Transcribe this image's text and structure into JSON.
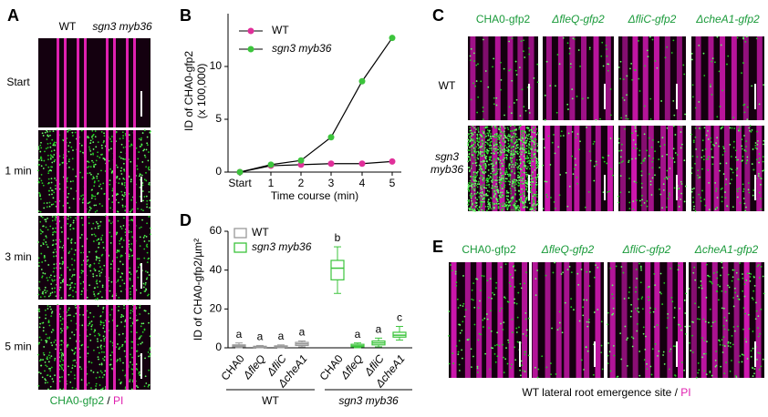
{
  "panel_letters": [
    "A",
    "B",
    "C",
    "D",
    "E"
  ],
  "panel_a": {
    "columns": [
      "WT",
      "sgn3 myb36"
    ],
    "rows": [
      "Start",
      "1 min",
      "3 min",
      "5 min"
    ],
    "caption": [
      "CHA0-gfp2",
      " / ",
      "PI"
    ]
  },
  "panel_c": {
    "columns": [
      "CHA0-gfp2",
      "ΔfleQ-gfp2",
      "ΔfliC-gfp2",
      "ΔcheA1-gfp2"
    ],
    "rows": [
      [
        "WT"
      ],
      [
        "sgn3",
        "myb36"
      ]
    ]
  },
  "panel_e": {
    "columns": [
      "CHA0-gfp2",
      "ΔfleQ-gfp2",
      "ΔfliC-gfp2",
      "ΔcheA1-gfp2"
    ],
    "caption": [
      "WT lateral root emergence site",
      " / ",
      "PI"
    ]
  },
  "chart_data": [
    {
      "type": "line",
      "categories": [
        "Start",
        "1",
        "2",
        "3",
        "4",
        "5"
      ],
      "series": [
        {
          "name": "WT",
          "color": "#e0309a",
          "values": [
            0,
            0.6,
            0.7,
            0.8,
            0.8,
            1.0
          ]
        },
        {
          "name": "sgn3 myb36",
          "color": "#3cc43c",
          "values": [
            0,
            0.7,
            1.1,
            3.3,
            8.6,
            12.7
          ]
        }
      ],
      "line_color": "#000000",
      "ylim": [
        0,
        15
      ],
      "yticks": [
        0,
        5,
        10
      ],
      "ylabel": [
        "ID of CHA0-gfp2",
        "(x 100,000)"
      ],
      "xlabel": "Time course (min)"
    },
    {
      "type": "box",
      "categories": [
        "CHA0",
        "ΔfleQ",
        "ΔfliC",
        "ΔcheA1"
      ],
      "series": [
        {
          "name": "WT",
          "color": "#999999",
          "boxes": [
            {
              "min": 0,
              "q1": 0.5,
              "median": 1,
              "q3": 1.5,
              "max": 2.5
            },
            {
              "min": 0,
              "q1": 0.2,
              "median": 0.5,
              "q3": 0.8,
              "max": 1.2
            },
            {
              "min": 0,
              "q1": 0.3,
              "median": 0.6,
              "q3": 1,
              "max": 1.5
            },
            {
              "min": 0.5,
              "q1": 1.2,
              "median": 2,
              "q3": 2.8,
              "max": 3.5
            }
          ],
          "letters": [
            "a",
            "a",
            "a",
            "a"
          ]
        },
        {
          "name": "sgn3 myb36",
          "color": "#3cc43c",
          "boxes": [
            {
              "min": 28,
              "q1": 35,
              "median": 41,
              "q3": 45,
              "max": 52
            },
            {
              "min": 0,
              "q1": 0.5,
              "median": 1,
              "q3": 1.8,
              "max": 2.5
            },
            {
              "min": 0.5,
              "q1": 1.5,
              "median": 2.5,
              "q3": 3.5,
              "max": 5
            },
            {
              "min": 4,
              "q1": 5.5,
              "median": 6.5,
              "q3": 8,
              "max": 11
            }
          ],
          "letters": [
            "b",
            "a",
            "a",
            "c"
          ]
        }
      ],
      "ylim": [
        0,
        60
      ],
      "yticks": [
        0,
        20,
        40,
        60
      ],
      "ylabel": "ID of CHA0-gfp2/µm²"
    }
  ]
}
